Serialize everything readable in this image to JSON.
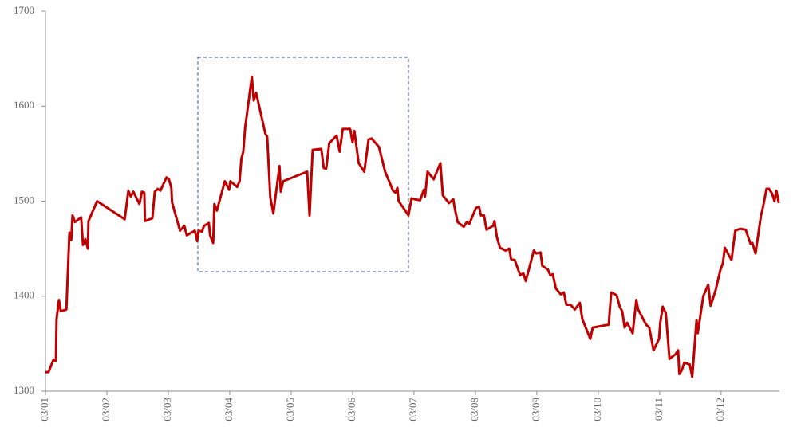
{
  "chart_data": {
    "type": "line",
    "x": [
      0,
      0.05,
      0.13,
      0.17,
      0.18,
      0.22,
      0.25,
      0.34,
      0.39,
      0.42,
      0.44,
      0.48,
      0.58,
      0.61,
      0.65,
      0.69,
      0.7,
      0.84,
      1.29,
      1.35,
      1.39,
      1.43,
      1.53,
      1.57,
      1.61,
      1.62,
      1.74,
      1.78,
      1.83,
      1.87,
      1.97,
      2.01,
      2.05,
      2.06,
      2.19,
      2.26,
      2.3,
      2.43,
      2.47,
      2.49,
      2.55,
      2.58,
      2.66,
      2.68,
      2.73,
      2.75,
      2.79,
      2.92,
      2.99,
      3.01,
      3.12,
      3.16,
      3.19,
      3.22,
      3.25,
      3.36,
      3.39,
      3.43,
      3.58,
      3.61,
      3.66,
      3.71,
      3.81,
      3.83,
      3.87,
      4.26,
      4.3,
      4.35,
      4.49,
      4.53,
      4.57,
      4.62,
      4.74,
      4.79,
      4.84,
      4.96,
      5.0,
      5.03,
      5.1,
      5.19,
      5.26,
      5.31,
      5.43,
      5.53,
      5.66,
      5.7,
      5.73,
      5.75,
      5.86,
      5.91,
      5.96,
      6.01,
      6.1,
      6.16,
      6.18,
      6.22,
      6.32,
      6.43,
      6.47,
      6.57,
      6.64,
      6.66,
      6.71,
      6.81,
      6.86,
      6.9,
      7.01,
      7.06,
      7.09,
      7.14,
      7.18,
      7.29,
      7.31,
      7.35,
      7.4,
      7.49,
      7.55,
      7.58,
      7.64,
      7.73,
      7.78,
      7.82,
      7.87,
      7.95,
      7.99,
      8.06,
      8.09,
      8.18,
      8.22,
      8.26,
      8.31,
      8.39,
      8.44,
      8.48,
      8.55,
      8.62,
      8.7,
      8.74,
      8.87,
      8.91,
      9.17,
      9.21,
      9.3,
      9.35,
      9.39,
      9.43,
      9.47,
      9.56,
      9.62,
      9.65,
      9.78,
      9.83,
      9.9,
      9.99,
      10.01,
      10.05,
      10.1,
      10.16,
      10.26,
      10.3,
      10.32,
      10.36,
      10.4,
      10.49,
      10.53,
      10.6,
      10.62,
      10.71,
      10.79,
      10.83,
      10.91,
      10.99,
      11.03,
      11.06,
      11.17,
      11.23,
      11.31,
      11.4,
      11.48,
      11.51,
      11.56,
      11.65,
      11.68,
      11.74,
      11.78,
      11.83,
      11.87,
      11.9,
      11.94
    ],
    "series": [
      {
        "color": "#c00000",
        "values": [
          1320,
          1320,
          1333,
          1332,
          1376,
          1396,
          1384,
          1386,
          1467,
          1459,
          1485,
          1478,
          1483,
          1454,
          1460,
          1450,
          1479,
          1500,
          1481,
          1511,
          1505,
          1510,
          1497,
          1510,
          1509,
          1479,
          1482,
          1510,
          1513,
          1511,
          1525,
          1523,
          1514,
          1499,
          1469,
          1474,
          1464,
          1469,
          1458,
          1469,
          1468,
          1474,
          1477,
          1464,
          1456,
          1497,
          1490,
          1521,
          1512,
          1521,
          1515,
          1521,
          1545,
          1552,
          1577,
          1631,
          1606,
          1614,
          1571,
          1568,
          1504,
          1487,
          1537,
          1510,
          1521,
          1531,
          1485,
          1554,
          1555,
          1535,
          1534,
          1561,
          1569,
          1552,
          1576,
          1576,
          1562,
          1574,
          1540,
          1531,
          1565,
          1566,
          1557,
          1531,
          1511,
          1509,
          1514,
          1500,
          1490,
          1485,
          1503,
          1502,
          1501,
          1512,
          1505,
          1531,
          1523,
          1540,
          1506,
          1498,
          1502,
          1494,
          1478,
          1473,
          1478,
          1476,
          1493,
          1494,
          1485,
          1485,
          1470,
          1474,
          1479,
          1462,
          1451,
          1448,
          1450,
          1439,
          1438,
          1422,
          1424,
          1416,
          1428,
          1448,
          1445,
          1446,
          1432,
          1428,
          1422,
          1423,
          1408,
          1402,
          1404,
          1391,
          1391,
          1386,
          1393,
          1376,
          1355,
          1367,
          1370,
          1404,
          1401,
          1389,
          1384,
          1367,
          1372,
          1361,
          1396,
          1386,
          1370,
          1367,
          1343,
          1355,
          1372,
          1389,
          1382,
          1334,
          1339,
          1343,
          1318,
          1322,
          1330,
          1328,
          1315,
          1375,
          1361,
          1400,
          1412,
          1390,
          1406,
          1428,
          1435,
          1451,
          1438,
          1469,
          1471,
          1470,
          1455,
          1456,
          1445,
          1485,
          1493,
          1513,
          1513,
          1508,
          1500,
          1511,
          1498
        ]
      }
    ],
    "xlim": [
      0,
      11.95
    ],
    "xticks": [
      {
        "value": 0,
        "label": "03/01"
      },
      {
        "value": 1,
        "label": "03/02"
      },
      {
        "value": 2,
        "label": "03/03"
      },
      {
        "value": 3,
        "label": "03/04"
      },
      {
        "value": 4,
        "label": "03/05"
      },
      {
        "value": 5,
        "label": "03/06"
      },
      {
        "value": 6,
        "label": "03/07"
      },
      {
        "value": 7,
        "label": "03/08"
      },
      {
        "value": 8,
        "label": "03/09"
      },
      {
        "value": 9,
        "label": "03/10"
      },
      {
        "value": 10,
        "label": "03/11"
      },
      {
        "value": 11,
        "label": "03/12"
      }
    ],
    "ylim": [
      1300,
      1700
    ],
    "yticks": [
      1300,
      1400,
      1500,
      1600,
      1700
    ],
    "grid": false
  }
}
